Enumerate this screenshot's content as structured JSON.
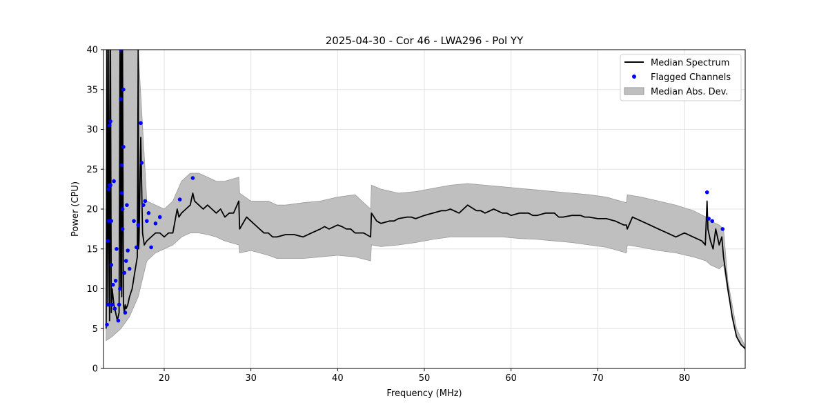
{
  "chart_data": {
    "type": "line",
    "title": "2025-04-30 - Cor 46 - LWA296 - Pol YY",
    "xlabel": "Frequency (MHz)",
    "ylabel": "Power (CPU)",
    "xlim": [
      13,
      87
    ],
    "ylim": [
      0,
      40
    ],
    "xticks": [
      20,
      30,
      40,
      50,
      60,
      70,
      80
    ],
    "yticks": [
      0,
      5,
      10,
      15,
      20,
      25,
      30,
      35,
      40
    ],
    "grid": true,
    "legend_position": "top-right",
    "colors": {
      "median": "#000000",
      "flagged": "#0000ff",
      "mad_fill": "#bfbfbf",
      "mad_edge": "#9a9a9a",
      "grid": "#e0e0e0"
    },
    "series": [
      {
        "name": "Median Spectrum",
        "kind": "line",
        "x": [
          13.3,
          13.4,
          13.5,
          13.6,
          13.7,
          13.8,
          13.9,
          14.0,
          14.1,
          14.2,
          14.4,
          14.6,
          14.8,
          14.9,
          15.0,
          15.05,
          15.1,
          15.2,
          15.3,
          15.4,
          15.5,
          15.6,
          15.8,
          16.0,
          16.3,
          16.6,
          16.9,
          17.0,
          17.05,
          17.1,
          17.3,
          17.5,
          17.7,
          18.0,
          18.5,
          19.0,
          19.5,
          20.0,
          20.5,
          21.0,
          21.5,
          21.7,
          22.0,
          22.5,
          23.0,
          23.3,
          23.5,
          24.0,
          24.5,
          25.0,
          25.5,
          26.0,
          26.5,
          27.0,
          27.5,
          28.0,
          28.6,
          28.7,
          29.5,
          30.0,
          30.5,
          31.0,
          31.5,
          32.0,
          32.5,
          33.0,
          34.0,
          35.0,
          36.0,
          37.0,
          38.0,
          38.5,
          39.0,
          40.0,
          40.5,
          41.0,
          41.5,
          42.0,
          43.0,
          43.8,
          43.9,
          44.5,
          45.0,
          46.0,
          46.5,
          47.0,
          48.0,
          48.5,
          49.0,
          50.0,
          51.0,
          52.0,
          52.5,
          53.0,
          54.0,
          54.5,
          55.0,
          56.0,
          56.5,
          57.0,
          58.0,
          59.0,
          59.5,
          60.0,
          61.0,
          62.0,
          62.5,
          63.0,
          64.0,
          65.0,
          65.5,
          66.0,
          67.0,
          68.0,
          68.5,
          69.0,
          70.0,
          71.0,
          72.0,
          73.0,
          73.3,
          73.4,
          74.0,
          75.0,
          76.0,
          77.0,
          78.0,
          79.0,
          80.0,
          81.0,
          82.0,
          82.4,
          82.6,
          82.7,
          83.0,
          83.3,
          83.6,
          84.0,
          84.3,
          84.5,
          85.0,
          85.5,
          86.0,
          86.5,
          87.0
        ],
        "y": [
          5,
          40,
          8,
          40,
          6,
          40,
          7,
          10,
          9,
          8,
          7,
          6,
          7,
          40,
          10,
          40,
          9,
          40,
          8,
          7,
          8,
          7.5,
          8,
          9,
          10,
          12,
          14,
          40,
          15,
          16,
          29,
          17,
          15.5,
          16,
          16.5,
          17,
          17,
          16.5,
          17,
          17,
          20,
          19,
          19.5,
          20,
          20.5,
          22,
          21,
          20.5,
          20,
          20.5,
          20,
          19.5,
          20,
          19,
          19.5,
          19.5,
          21,
          17.5,
          19,
          18.5,
          18,
          17.5,
          17,
          17,
          16.5,
          16.5,
          16.8,
          16.8,
          16.5,
          17,
          17.5,
          17.8,
          17.5,
          18,
          17.8,
          17.5,
          17.5,
          17,
          17,
          16.5,
          19.5,
          18.5,
          18.2,
          18.5,
          18.5,
          18.8,
          19,
          19,
          18.8,
          19.2,
          19.5,
          19.8,
          19.8,
          20,
          19.5,
          20,
          20.5,
          19.8,
          19.8,
          19.5,
          20,
          19.5,
          19.5,
          19.2,
          19.5,
          19.5,
          19.2,
          19.2,
          19.5,
          19.5,
          19,
          19,
          19.2,
          19.2,
          19,
          19,
          18.8,
          18.8,
          18.5,
          18,
          18,
          17.5,
          19,
          18.5,
          18,
          17.5,
          17,
          16.5,
          17,
          16.5,
          16,
          15.5,
          21,
          17.5,
          16,
          15,
          17.5,
          15.5,
          16.5,
          14,
          10,
          6.5,
          4,
          3,
          2.5
        ]
      },
      {
        "name": "Flagged Channels",
        "kind": "scatter",
        "x": [
          13.4,
          13.5,
          13.5,
          13.6,
          13.6,
          13.7,
          13.7,
          13.8,
          13.8,
          13.9,
          13.9,
          14.0,
          14.1,
          14.2,
          14.3,
          14.4,
          14.5,
          14.7,
          14.8,
          14.9,
          15.0,
          15.0,
          15.1,
          15.1,
          15.2,
          15.2,
          15.3,
          15.3,
          15.4,
          15.5,
          15.6,
          15.7,
          15.8,
          16.0,
          16.5,
          16.8,
          17.0,
          17.3,
          17.4,
          17.6,
          17.8,
          18.0,
          18.2,
          18.5,
          19.0,
          19.5,
          21.8,
          23.3,
          82.6,
          82.8,
          83.2,
          84.4
        ],
        "y": [
          5.5,
          8.0,
          16.0,
          18.5,
          22.5,
          23.0,
          30.5,
          31.0,
          23.0,
          18.5,
          13.0,
          8.0,
          10.5,
          23.5,
          7.5,
          11.0,
          15.0,
          6.0,
          8.0,
          10.0,
          40.0,
          33.8,
          22.0,
          25.5,
          20.0,
          17.5,
          35.0,
          27.8,
          12.0,
          7.0,
          13.5,
          20.5,
          14.8,
          12.5,
          18.5,
          15.2,
          18.0,
          30.8,
          25.8,
          20.5,
          21.0,
          18.5,
          19.5,
          15.2,
          18.2,
          19.0,
          21.2,
          23.9,
          22.1,
          18.8,
          18.5,
          17.5
        ]
      },
      {
        "name": "Median Abs. Dev.",
        "kind": "band",
        "x": [
          13.3,
          14.0,
          15.0,
          16.0,
          17.0,
          18.0,
          19.0,
          20.0,
          21.0,
          22.0,
          23.0,
          24.0,
          25.0,
          26.0,
          27.0,
          28.6,
          28.7,
          30.0,
          31.0,
          32.0,
          33.0,
          34.0,
          36.0,
          38.0,
          40.0,
          42.0,
          43.8,
          43.9,
          45.0,
          47.0,
          49.0,
          51.0,
          53.0,
          55.0,
          57.0,
          59.0,
          61.0,
          63.0,
          65.0,
          67.0,
          69.0,
          71.0,
          73.3,
          73.4,
          75.0,
          77.0,
          79.0,
          81.0,
          82.5,
          83.0,
          84.0,
          84.5,
          85.0,
          86.0,
          87.0
        ],
        "lower": [
          3.5,
          4.0,
          5.0,
          6.5,
          9.0,
          13.5,
          14.5,
          15.0,
          15.5,
          16.5,
          17.0,
          17.0,
          16.8,
          16.5,
          16.0,
          15.5,
          14.5,
          14.8,
          14.5,
          14.2,
          13.8,
          13.8,
          13.8,
          14.0,
          14.2,
          14.0,
          13.5,
          15.5,
          15.3,
          15.5,
          15.8,
          16.2,
          16.5,
          16.5,
          16.5,
          16.5,
          16.3,
          16.2,
          16.0,
          15.8,
          15.5,
          15.2,
          14.5,
          15.5,
          15.2,
          14.8,
          14.5,
          14.0,
          13.5,
          13.0,
          12.5,
          13.0,
          9.5,
          4.0,
          2.3
        ],
        "upper": [
          40.0,
          40.0,
          40.0,
          40.0,
          40.0,
          21.0,
          20.5,
          20.0,
          21.0,
          23.5,
          24.5,
          24.5,
          24.0,
          23.5,
          23.5,
          24.0,
          22.0,
          21.0,
          21.0,
          21.0,
          20.5,
          20.5,
          20.8,
          21.0,
          21.5,
          21.8,
          20.0,
          23.0,
          22.5,
          22.0,
          22.2,
          22.6,
          23.0,
          23.2,
          23.0,
          22.8,
          22.6,
          22.4,
          22.2,
          22.0,
          21.8,
          21.5,
          20.8,
          21.8,
          21.5,
          21.0,
          20.5,
          19.8,
          19.0,
          18.5,
          18.0,
          17.5,
          11.0,
          5.0,
          2.8
        ]
      }
    ]
  }
}
